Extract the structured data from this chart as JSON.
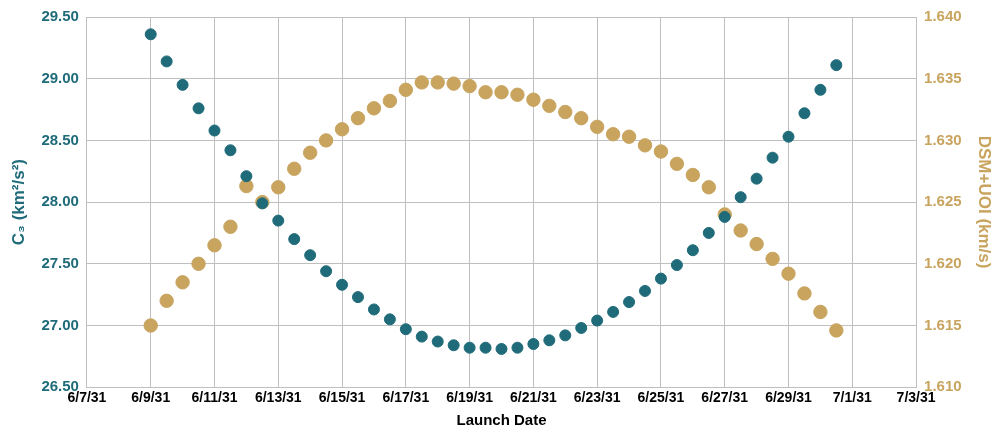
{
  "chart_data": {
    "type": "scatter",
    "xlabel": "Launch Date",
    "ylabel": "C₃ (km²/s²)",
    "y2label": "DSM+UOI (km/s)",
    "x": [
      "--06-09T00:00",
      "--06-09T12:00",
      "--06-10T00:00",
      "--06-10T12:00",
      "--06-11T00:00",
      "--06-11T12:00",
      "--06-12T00:00",
      "--06-12T12:00",
      "--06-13T00:00",
      "--06-13T12:00",
      "--06-14T00:00",
      "--06-14T12:00",
      "--06-15T00:00",
      "--06-15T12:00",
      "--06-16T00:00",
      "--06-16T12:00",
      "--06-17T00:00",
      "--06-17T12:00",
      "--06-18T00:00",
      "--06-18T12:00",
      "--06-19T00:00",
      "--06-19T12:00",
      "--06-20T00:00",
      "--06-20T12:00",
      "--06-21T00:00",
      "--06-21T12:00",
      "--06-22T00:00",
      "--06-22T12:00",
      "--06-23T00:00",
      "--06-23T12:00",
      "--06-24T00:00",
      "--06-24T12:00",
      "--06-25T00:00",
      "--06-25T12:00",
      "--06-26T00:00",
      "--06-26T12:00",
      "--06-27T00:00",
      "--06-27T12:00",
      "--06-28T00:00",
      "--06-28T12:00",
      "--06-29T00:00",
      "--06-29T12:00",
      "--06-30T00:00",
      "--06-30T12:00"
    ],
    "series": [
      {
        "color": "#1f6b7a",
        "values": [
          29.36,
          29.14,
          28.95,
          28.76,
          28.58,
          28.42,
          28.21,
          27.99,
          27.85,
          27.7,
          27.57,
          27.44,
          27.33,
          27.23,
          27.13,
          27.05,
          26.97,
          26.91,
          26.87,
          26.84,
          26.82,
          26.82,
          26.81,
          26.82,
          26.85,
          26.88,
          26.92,
          26.98,
          27.04,
          27.11,
          27.19,
          27.28,
          27.38,
          27.49,
          27.61,
          27.75,
          27.88,
          28.04,
          28.19,
          28.36,
          28.53,
          28.72,
          28.91,
          29.11
        ]
      },
      {
        "color": "#c8a45e",
        "axis": "y2",
        "values": [
          1.615,
          1.617,
          1.6185,
          1.62,
          1.6215,
          1.623,
          1.6263,
          1.625,
          1.6262,
          1.6277,
          1.629,
          1.63,
          1.6309,
          1.6318,
          1.6326,
          1.6332,
          1.6341,
          1.6347,
          1.6347,
          1.6346,
          1.6344,
          1.6339,
          1.6339,
          1.6337,
          1.6333,
          1.6328,
          1.6323,
          1.6318,
          1.6311,
          1.6305,
          1.6303,
          1.6296,
          1.6291,
          1.6281,
          1.6272,
          1.6262,
          1.624,
          1.6227,
          1.6216,
          1.6204,
          1.6192,
          1.6176,
          1.6161,
          1.6146
        ]
      }
    ],
    "xlim": [
      "--06-07",
      "--07-03"
    ],
    "xticks": [
      {
        "value": "--06-07",
        "label": "6/7/31"
      },
      {
        "value": "--06-09",
        "label": "6/9/31"
      },
      {
        "value": "--06-11",
        "label": "6/11/31"
      },
      {
        "value": "--06-13",
        "label": "6/13/31"
      },
      {
        "value": "--06-15",
        "label": "6/15/31"
      },
      {
        "value": "--06-17",
        "label": "6/17/31"
      },
      {
        "value": "--06-19",
        "label": "6/19/31"
      },
      {
        "value": "--06-21",
        "label": "6/21/31"
      },
      {
        "value": "--06-23",
        "label": "6/23/31"
      },
      {
        "value": "--06-25",
        "label": "6/25/31"
      },
      {
        "value": "--06-27",
        "label": "6/27/31"
      },
      {
        "value": "--06-29",
        "label": "6/29/31"
      },
      {
        "value": "--07-01",
        "label": "7/1/31"
      },
      {
        "value": "--07-03",
        "label": "7/3/31"
      }
    ],
    "ylim": [
      26.5,
      29.5
    ],
    "yticks": [
      {
        "value": 26.5,
        "label": "26.50"
      },
      {
        "value": 27,
        "label": "27.00"
      },
      {
        "value": 27.5,
        "label": "27.50"
      },
      {
        "value": 28,
        "label": "28.00"
      },
      {
        "value": 28.5,
        "label": "28.50"
      },
      {
        "value": 29,
        "label": "29.00"
      },
      {
        "value": 29.5,
        "label": "29.50"
      }
    ],
    "y2lim": [
      1.61,
      1.64
    ],
    "y2ticks": [
      {
        "value": 1.61,
        "label": "1.610"
      },
      {
        "value": 1.615,
        "label": "1.615"
      },
      {
        "value": 1.62,
        "label": "1.620"
      },
      {
        "value": 1.625,
        "label": "1.625"
      },
      {
        "value": 1.63,
        "label": "1.630"
      },
      {
        "value": 1.635,
        "label": "1.635"
      },
      {
        "value": 1.64,
        "label": "1.640"
      }
    ],
    "grid": true,
    "legend": false,
    "marker": "circle"
  }
}
